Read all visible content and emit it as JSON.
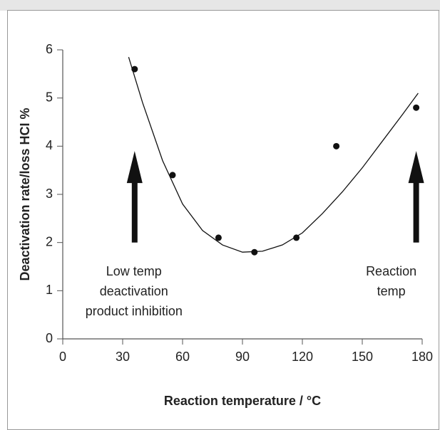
{
  "chart_data": {
    "type": "scatter",
    "xlabel": "Reaction temperature / °C",
    "ylabel": "Deactivation rate/loss HCI %",
    "xlim": [
      0,
      180
    ],
    "xticks": [
      0,
      30,
      60,
      90,
      120,
      150,
      180
    ],
    "ylim": [
      0,
      6
    ],
    "yticks": [
      0,
      1,
      2,
      3,
      4,
      5,
      6
    ],
    "color": "#111111",
    "points": {
      "x": [
        36,
        55,
        78,
        96,
        117,
        137,
        177
      ],
      "values": [
        5.6,
        3.4,
        2.1,
        1.8,
        2.1,
        4.0,
        4.8
      ]
    },
    "curve": {
      "x": [
        33,
        40,
        50,
        60,
        70,
        80,
        90,
        100,
        110,
        120,
        130,
        140,
        150,
        160,
        170,
        178
      ],
      "values": [
        5.85,
        4.9,
        3.7,
        2.8,
        2.25,
        1.95,
        1.8,
        1.82,
        1.95,
        2.2,
        2.6,
        3.05,
        3.55,
        4.1,
        4.65,
        5.1
      ]
    },
    "annotations": [
      {
        "lines": [
          "Low temp",
          "deactivation",
          "product inhibition"
        ],
        "x": 36,
        "arrow": [
          2,
          3.9
        ]
      },
      {
        "lines": [
          "Reaction",
          "temp"
        ],
        "x": 177,
        "arrow": [
          2,
          3.9
        ]
      }
    ]
  }
}
